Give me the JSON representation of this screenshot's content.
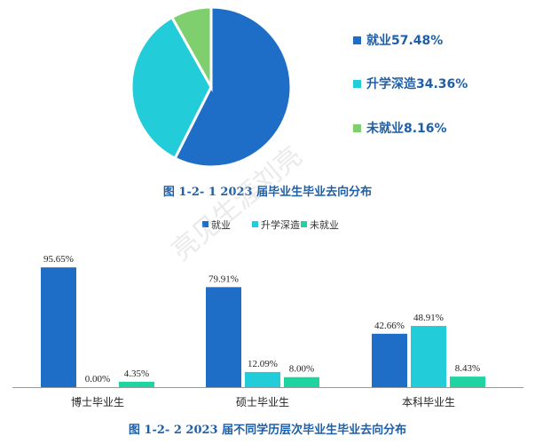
{
  "watermark": "亮见生涯刘亮",
  "chart_data": [
    {
      "type": "pie",
      "title": "图 1-2- 1 2023 届毕业生毕业去向分布",
      "slices": [
        {
          "label": "就业57.48%",
          "value": 57.48,
          "color": "#1e6ec8"
        },
        {
          "label": "升学深造34.36%",
          "value": 34.36,
          "color": "#22ccd8"
        },
        {
          "label": "未就业8.16%",
          "value": 8.16,
          "color": "#7fcf6e"
        }
      ]
    },
    {
      "type": "bar",
      "title": "图 1-2- 2 2023 届不同学历层次毕业生毕业去向分布",
      "categories": [
        "博士毕业生",
        "硕士毕业生",
        "本科毕业生"
      ],
      "series": [
        {
          "name": "就业",
          "color": "#1e6ec8",
          "values": [
            95.65,
            79.91,
            42.66
          ],
          "labels": [
            "95.65%",
            "79.91%",
            "42.66%"
          ]
        },
        {
          "name": "升学深造",
          "color": "#22ccd8",
          "values": [
            0.0,
            12.09,
            48.91
          ],
          "labels": [
            "0.00%",
            "12.09%",
            "48.91%"
          ]
        },
        {
          "name": "未就业",
          "color": "#1ed4a0",
          "values": [
            4.35,
            8.0,
            8.43
          ],
          "labels": [
            "4.35%",
            "8.00%",
            "8.43%"
          ]
        }
      ],
      "ylim": [
        0,
        100
      ],
      "legend": "top-center"
    }
  ]
}
